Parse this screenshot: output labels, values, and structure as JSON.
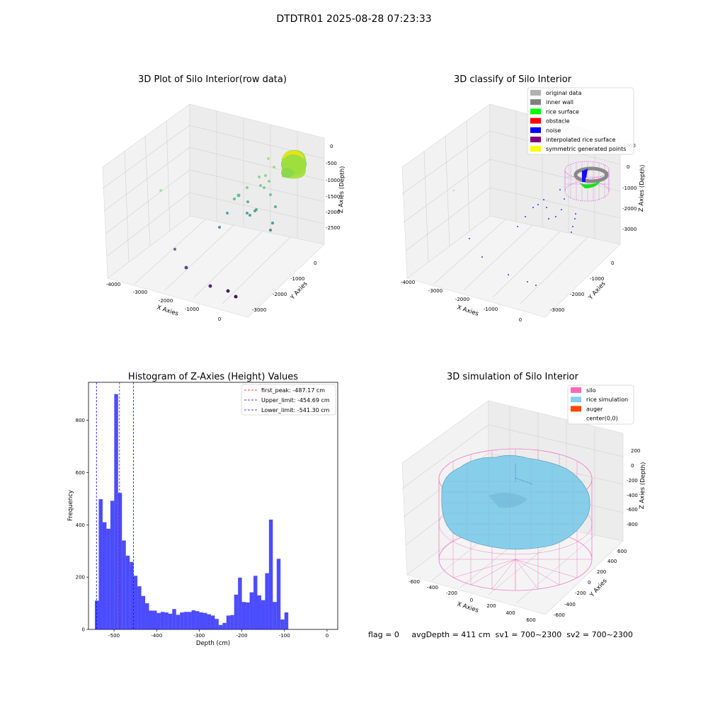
{
  "suptitle": "DTDTR01 2025-08-28 07:23:33",
  "panels": {
    "raw": {
      "title": "3D Plot of Silo Interior(row data)",
      "xlabel": "X Axies",
      "ylabel": "Y Axies",
      "zlabel": "Z Axies (Depth)",
      "xticks": [
        "-4000",
        "-3000",
        "-2000",
        "-1000",
        "0"
      ],
      "yticks": [
        "0",
        "-1000",
        "-2000",
        "-3000"
      ],
      "zticks": [
        "0",
        "-500",
        "-1000",
        "-1500",
        "-2000",
        "-2500"
      ]
    },
    "classify": {
      "title": "3D classify of Silo Interior",
      "xlabel": "X Axies",
      "ylabel": "Y Axies",
      "zlabel": "Z Axies (Depth)",
      "xticks": [
        "-4000",
        "-3000",
        "-2000",
        "-1000",
        "0"
      ],
      "yticks": [
        "0",
        "-1000",
        "-2000",
        "-3000"
      ],
      "zticks": [
        "1000",
        "0",
        "-1000",
        "-2000",
        "-3000"
      ],
      "legend": [
        {
          "label": "original data",
          "color": "#b0b0b0"
        },
        {
          "label": "inner wall",
          "color": "#808080"
        },
        {
          "label": "rice surface",
          "color": "#00ff00"
        },
        {
          "label": "obstacle",
          "color": "#ff0000"
        },
        {
          "label": "noise",
          "color": "#0000ff"
        },
        {
          "label": "interpolated rice surface",
          "color": "#800080"
        },
        {
          "label": "symmetric generated points",
          "color": "#ffff00"
        }
      ]
    },
    "simulation": {
      "title": "3D simulation of Silo Interior",
      "xlabel": "X Axies",
      "ylabel": "Y Axies",
      "zlabel": "Z Axies (Depth)",
      "xticks": [
        "-600",
        "-400",
        "-200",
        "0",
        "200",
        "400",
        "600"
      ],
      "yticks": [
        "600",
        "400",
        "200",
        "0",
        "-200",
        "-400",
        "-600"
      ],
      "zticks": [
        "200",
        "0",
        "-200",
        "-400",
        "-600",
        "-800"
      ],
      "legend": [
        {
          "label": "silo",
          "color": "#ff69b4"
        },
        {
          "label": "rice simulation",
          "color": "#87ceeb"
        },
        {
          "label": "auger",
          "color": "#ff4500"
        },
        {
          "label": "center(0,0)",
          "color": "#ffffff"
        }
      ]
    }
  },
  "status_line": "flag = 0     avgDepth = 411 cm  sv1 = 700~2300  sv2 = 700~2300",
  "chart_data": [
    {
      "type": "scatter",
      "title": "3D Plot of Silo Interior(row data)",
      "xlabel": "X Axies",
      "ylabel": "Y Axies",
      "zlabel": "Z Axies (Depth)",
      "xlim": [
        -4200,
        500
      ],
      "ylim": [
        -3500,
        500
      ],
      "zlim": [
        -3000,
        200
      ],
      "colormap": "viridis (by depth)",
      "grid": true
    },
    {
      "type": "scatter",
      "title": "3D classify of Silo Interior",
      "xlabel": "X Axies",
      "ylabel": "Y Axies",
      "zlabel": "Z Axies (Depth)",
      "legend_position": "top-right",
      "series": [
        {
          "name": "original data"
        },
        {
          "name": "inner wall"
        },
        {
          "name": "rice surface"
        },
        {
          "name": "obstacle"
        },
        {
          "name": "noise"
        },
        {
          "name": "interpolated rice surface"
        },
        {
          "name": "symmetric generated points"
        }
      ],
      "grid": true
    },
    {
      "type": "bar",
      "title": "Histogram of Z-Axies (Height) Values",
      "xlabel": "Depth (cm)",
      "ylabel": "Frequency",
      "xlim": [
        -560,
        25
      ],
      "ylim": [
        0,
        945
      ],
      "xticks": [
        -500,
        -400,
        -300,
        -200,
        -100,
        0
      ],
      "yticks": [
        0,
        200,
        400,
        600,
        800
      ],
      "bin_start": -545,
      "bin_width": 9.08,
      "values": [
        110,
        498,
        410,
        385,
        492,
        900,
        522,
        340,
        282,
        258,
        205,
        165,
        128,
        100,
        72,
        72,
        63,
        67,
        65,
        60,
        78,
        56,
        65,
        67,
        67,
        73,
        70,
        65,
        63,
        58,
        53,
        40,
        17,
        25,
        53,
        55,
        133,
        198,
        105,
        103,
        142,
        205,
        130,
        112,
        215,
        420,
        105,
        270,
        38,
        65
      ],
      "color": "#0000ff",
      "vlines": [
        {
          "label": "first_peak: -487.17 cm",
          "value": -487.17,
          "color": "#ff0000"
        },
        {
          "label": "Upper_limit: -454.69 cm",
          "value": -454.69,
          "color": "#0000ff"
        },
        {
          "label": "Lower_limit: -541.30 cm",
          "value": -541.3,
          "color": "#0000ff"
        }
      ],
      "legend_position": "top-right"
    },
    {
      "type": "area",
      "title": "3D simulation of Silo Interior",
      "xlabel": "X Axies",
      "ylabel": "Y Axies",
      "zlabel": "Z Axies (Depth)",
      "series": [
        {
          "name": "silo"
        },
        {
          "name": "rice simulation"
        },
        {
          "name": "auger"
        },
        {
          "name": "center(0,0)"
        }
      ],
      "legend_position": "top-right",
      "grid": true
    }
  ]
}
